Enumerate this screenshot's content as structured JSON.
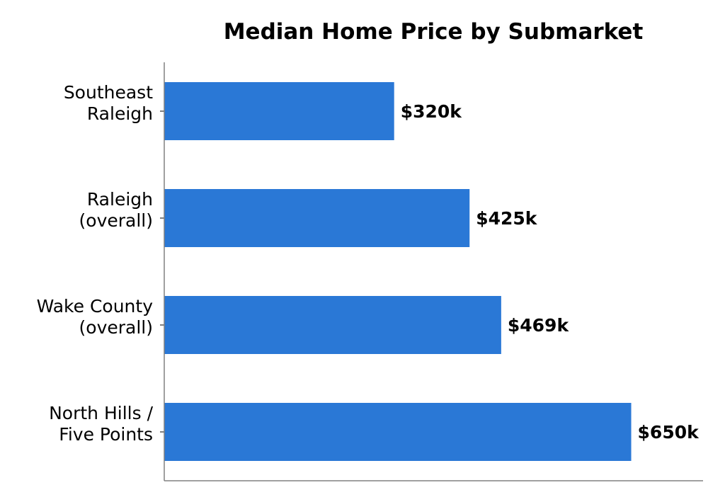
{
  "chart_data": {
    "type": "bar",
    "orientation": "horizontal",
    "title": "Median Home Price by Submarket",
    "xlabel": "",
    "ylabel": "",
    "categories": [
      [
        "Southeast",
        "Raleigh"
      ],
      [
        "Raleigh",
        "(overall)"
      ],
      [
        "Wake County",
        "(overall)"
      ],
      [
        "North Hills /",
        "Five Points"
      ]
    ],
    "values": [
      320,
      425,
      469,
      650
    ],
    "value_labels": [
      "$320k",
      "$425k",
      "$469k",
      "$650k"
    ],
    "xlim": [
      0,
      750
    ],
    "x_axis_visible": false,
    "grid": false,
    "bar_color": "#2a78d6",
    "axis_color": "#808080"
  }
}
